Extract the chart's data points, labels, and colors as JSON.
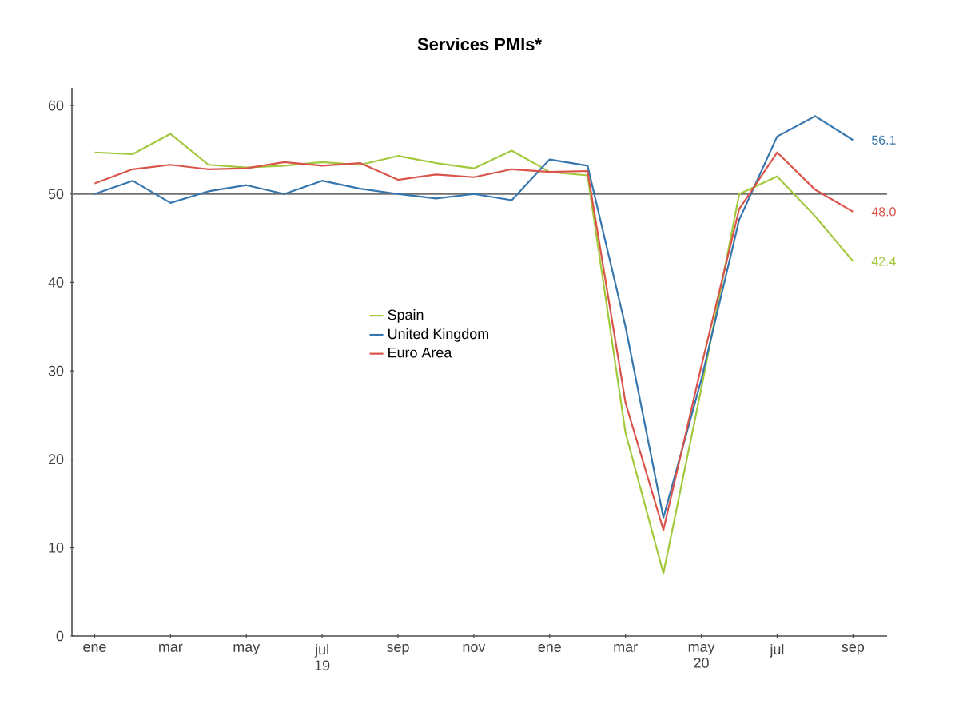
{
  "chart_data": {
    "type": "line",
    "title": "Services PMIs*",
    "categories": [
      "ene",
      null,
      "mar",
      null,
      "may",
      null,
      "jul 19",
      null,
      "sep",
      null,
      "nov",
      null,
      "ene",
      null,
      "mar",
      null,
      "may 20",
      null,
      "jul",
      null,
      "sep"
    ],
    "series": [
      {
        "name": "Spain",
        "color": "#a2c83c",
        "values": [
          54.7,
          54.5,
          56.8,
          53.3,
          53.0,
          53.2,
          53.6,
          53.3,
          54.3,
          53.5,
          52.9,
          54.9,
          52.5,
          52.1,
          23.0,
          7.1,
          28.0,
          50.0,
          52.0,
          47.5,
          42.4
        ],
        "value_labels": [
          null,
          null,
          null,
          null,
          null,
          null,
          null,
          null,
          null,
          null,
          null,
          null,
          null,
          null,
          null,
          null,
          null,
          null,
          null,
          null,
          "42.4"
        ]
      },
      {
        "name": "United Kingdom",
        "color": "#3576ae",
        "values": [
          50.0,
          51.5,
          49.0,
          50.3,
          51.0,
          50.0,
          51.5,
          50.6,
          50.0,
          49.5,
          50.0,
          49.3,
          53.9,
          53.2,
          35.0,
          13.4,
          29.0,
          47.1,
          56.5,
          58.8,
          56.1
        ],
        "value_labels": [
          null,
          null,
          null,
          null,
          null,
          null,
          null,
          null,
          null,
          null,
          null,
          null,
          null,
          null,
          null,
          null,
          null,
          null,
          null,
          null,
          "56.1"
        ]
      },
      {
        "name": "Euro Area",
        "color": "#d9534a",
        "values": [
          51.2,
          52.8,
          53.3,
          52.8,
          52.9,
          53.6,
          53.2,
          53.5,
          51.6,
          52.2,
          51.9,
          52.8,
          52.5,
          52.6,
          26.4,
          12.0,
          30.5,
          48.3,
          54.7,
          50.5,
          48.0
        ],
        "value_labels": [
          null,
          null,
          null,
          null,
          null,
          null,
          null,
          null,
          null,
          null,
          null,
          null,
          null,
          null,
          null,
          null,
          null,
          null,
          null,
          null,
          "48.0"
        ]
      }
    ],
    "ylim": [
      0,
      62
    ],
    "yticks": [
      0,
      10,
      20,
      30,
      40,
      50,
      60
    ],
    "ref_lines": [
      {
        "axis": "y",
        "value": 50,
        "color": "#707070"
      }
    ],
    "legend": "center"
  }
}
